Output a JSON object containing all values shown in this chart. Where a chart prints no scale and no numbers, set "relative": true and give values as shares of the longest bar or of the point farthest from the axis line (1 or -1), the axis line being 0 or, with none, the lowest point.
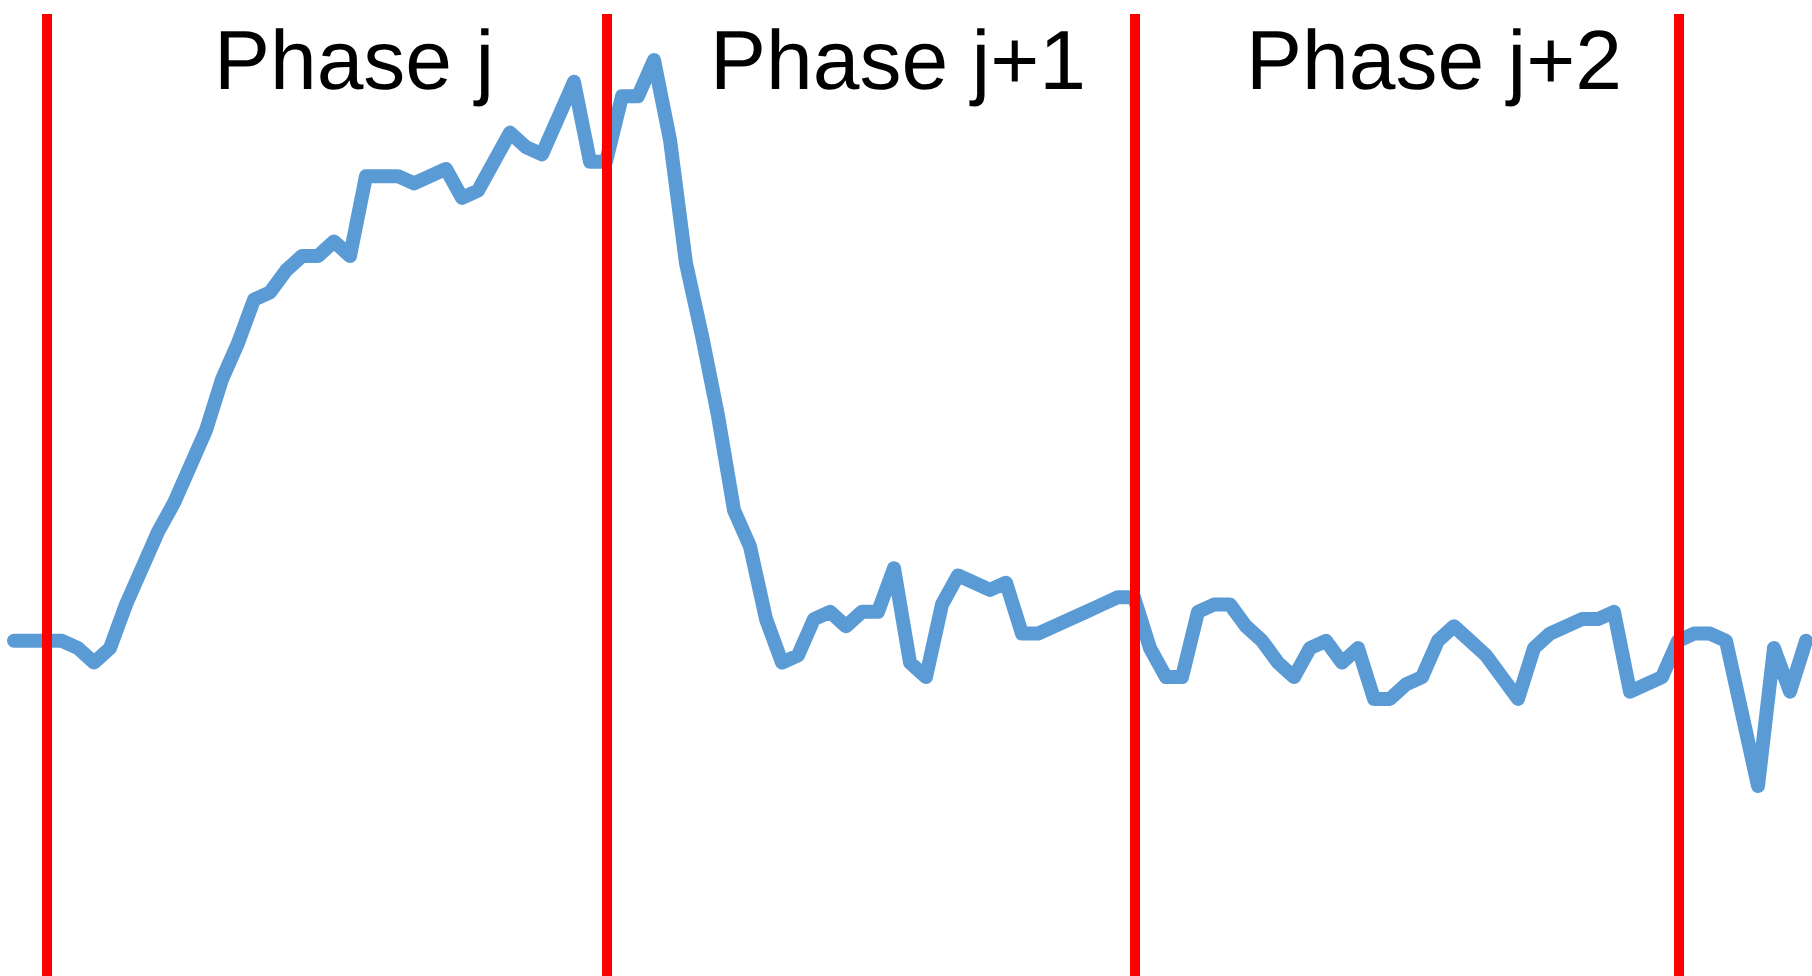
{
  "chart_data": {
    "type": "line",
    "relative": true,
    "tick_labels": false,
    "marker": "none",
    "line_style": "solid",
    "categories": [
      null,
      null,
      null,
      null,
      null,
      null,
      null,
      null,
      null,
      null,
      null,
      null,
      null,
      null,
      null,
      null,
      null,
      null,
      null,
      null,
      null,
      null,
      null,
      null,
      null,
      null,
      null,
      null,
      null,
      null,
      null,
      null,
      null,
      null,
      null,
      null,
      null,
      null,
      null,
      null,
      null,
      null,
      null,
      null,
      null,
      null,
      null,
      null,
      null,
      null,
      null,
      null,
      null,
      null,
      null,
      null,
      null,
      null,
      null,
      null,
      null,
      null,
      null,
      null,
      null,
      null,
      null,
      null,
      null,
      null,
      null,
      null,
      null,
      null,
      null,
      null,
      null,
      null,
      null,
      null,
      null,
      null,
      null,
      null,
      null,
      null,
      null,
      null,
      null,
      null,
      null,
      null,
      null,
      null,
      null,
      null,
      null,
      null,
      null,
      null,
      null,
      null,
      null,
      null,
      null,
      null,
      null,
      null,
      null,
      null,
      null,
      null,
      null
    ],
    "series": [
      {
        "color": "#5b9bd5",
        "values": [
          0.2,
          0.2,
          0.2,
          0.2,
          0.19,
          0.17,
          0.19,
          0.25,
          0.3,
          0.35,
          0.39,
          0.44,
          0.49,
          0.56,
          0.61,
          0.67,
          0.68,
          0.71,
          0.73,
          0.73,
          0.75,
          0.73,
          0.84,
          0.84,
          0.84,
          0.83,
          0.84,
          0.85,
          0.81,
          0.82,
          0.86,
          0.9,
          0.88,
          0.87,
          0.92,
          0.97,
          0.86,
          0.86,
          0.95,
          0.95,
          1,
          0.89,
          0.72,
          0.62,
          0.51,
          0.38,
          0.33,
          0.23,
          0.17,
          0.18,
          0.23,
          0.24,
          0.22,
          0.24,
          0.24,
          0.3,
          0.17,
          0.15,
          0.25,
          0.29,
          0.28,
          0.27,
          0.28,
          0.21,
          0.21,
          0.22,
          0.23,
          0.24,
          0.25,
          0.26,
          0.26,
          0.19,
          0.15,
          0.15,
          0.24,
          0.25,
          0.25,
          0.22,
          0.2,
          0.17,
          0.15,
          0.19,
          0.2,
          0.17,
          0.19,
          0.12,
          0.12,
          0.14,
          0.15,
          0.2,
          0.22,
          0.2,
          0.18,
          0.15,
          0.12,
          0.19,
          0.21,
          0.22,
          0.23,
          0.23,
          0.24,
          0.13,
          0.14,
          0.15,
          0.2,
          0.21,
          0.21,
          0.2,
          0.1,
          0,
          0.19,
          0.13,
          0.2
        ]
      }
    ],
    "annotations": [
      "Phase j",
      "Phase j+1",
      "Phase j+2"
    ]
  }
}
